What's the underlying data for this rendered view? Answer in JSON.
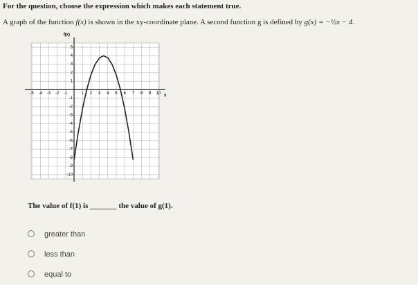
{
  "instruction": "For the question, choose the expression which makes each statement true.",
  "question": {
    "part1": "A graph of the function",
    "f": "f(x)",
    "part2": "is shown in the xy-coordinate plane. A second function g is defined by",
    "g": "g(x) = −½x − 4."
  },
  "chart_data": {
    "type": "line",
    "y_label": "f(x)",
    "x_label": "x",
    "x": [
      0,
      0.5,
      1,
      1.5,
      2,
      2.5,
      3,
      3.5,
      4,
      4.5,
      5,
      5.5,
      6,
      6.5,
      7
    ],
    "series": [
      {
        "name": "f(x)",
        "color": "#222222",
        "values": [
          -8.25,
          -5,
          -2.25,
          0,
          1.75,
          3,
          3.75,
          4,
          3.75,
          3,
          1.75,
          0,
          -2.25,
          -5,
          -8.25
        ]
      }
    ],
    "xlim": [
      -5.5,
      10.5
    ],
    "ylim": [
      -10.5,
      5.5
    ],
    "xticks": [
      -5,
      -4,
      -3,
      -2,
      -1,
      1,
      2,
      3,
      4,
      5,
      6,
      7,
      8,
      9,
      10
    ],
    "yticks": [
      5,
      4,
      3,
      2,
      1,
      -1,
      -2,
      -3,
      -4,
      -5,
      -6,
      -7,
      -8,
      -9,
      -10
    ],
    "grid": true
  },
  "statement": {
    "part1": "The value of f(1) is",
    "blank": "_______",
    "part2": "the value of g(1)."
  },
  "options": [
    "greater than",
    "less than",
    "equal to"
  ]
}
